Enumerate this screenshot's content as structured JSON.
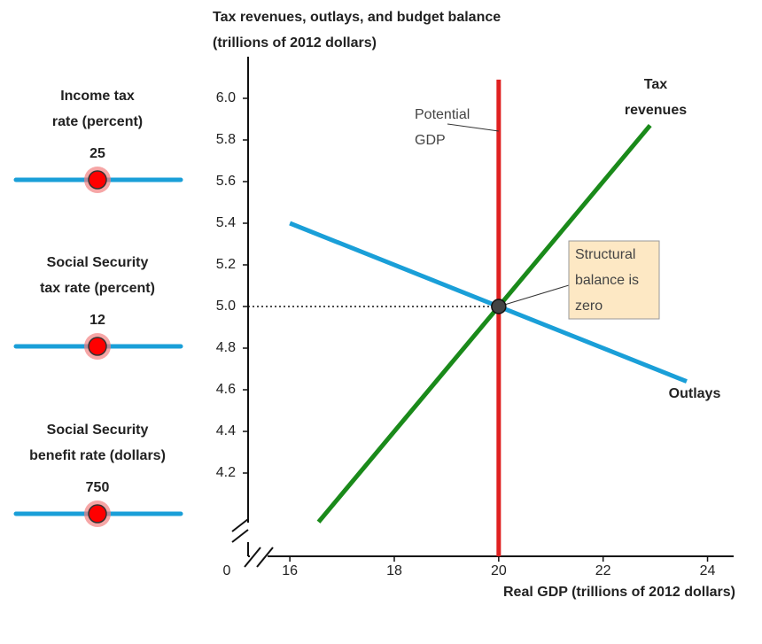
{
  "chart_data": {
    "type": "line",
    "title": [
      "Tax revenues, outlays, and budget balance",
      "(trillions of 2012 dollars)"
    ],
    "x_label": "Real GDP (trillions of 2012 dollars)",
    "origin_label": "0",
    "xlim": [
      15.2,
      24.5
    ],
    "ylim": [
      3.8,
      6.2
    ],
    "xticks": [
      16,
      18,
      20,
      22,
      24
    ],
    "yticks": [
      4.2,
      4.4,
      4.6,
      4.8,
      {
        "value": 5,
        "label": "5.0"
      },
      5.2,
      5.4,
      5.6,
      5.8,
      {
        "value": 6,
        "label": "6.0"
      }
    ],
    "series": [
      {
        "label": [
          "Outlays"
        ],
        "color": "#1a9fd8",
        "x": [
          16,
          23.6
        ],
        "values": [
          5.4,
          4.64
        ]
      },
      {
        "label": [
          "Tax",
          "revenues"
        ],
        "color": "#1a8a1a",
        "x": [
          16.55,
          22.9
        ],
        "values": [
          3.965,
          5.87
        ]
      },
      {
        "label": [
          "Potential",
          "GDP"
        ],
        "color": "#e02020",
        "x": [
          20,
          20
        ],
        "values": [
          6.09,
          3.8
        ]
      }
    ],
    "point": {
      "x": 20,
      "y": 5,
      "label": [
        "Structural",
        "balance is",
        "zero"
      ]
    }
  },
  "sliders": [
    {
      "label": [
        "Income tax",
        "rate (percent)"
      ],
      "value": 25
    },
    {
      "label": [
        "Social Security",
        "tax rate (percent)"
      ],
      "value": 12
    },
    {
      "label": [
        "Social Security",
        "benefit rate (dollars)"
      ],
      "value": 750
    }
  ]
}
